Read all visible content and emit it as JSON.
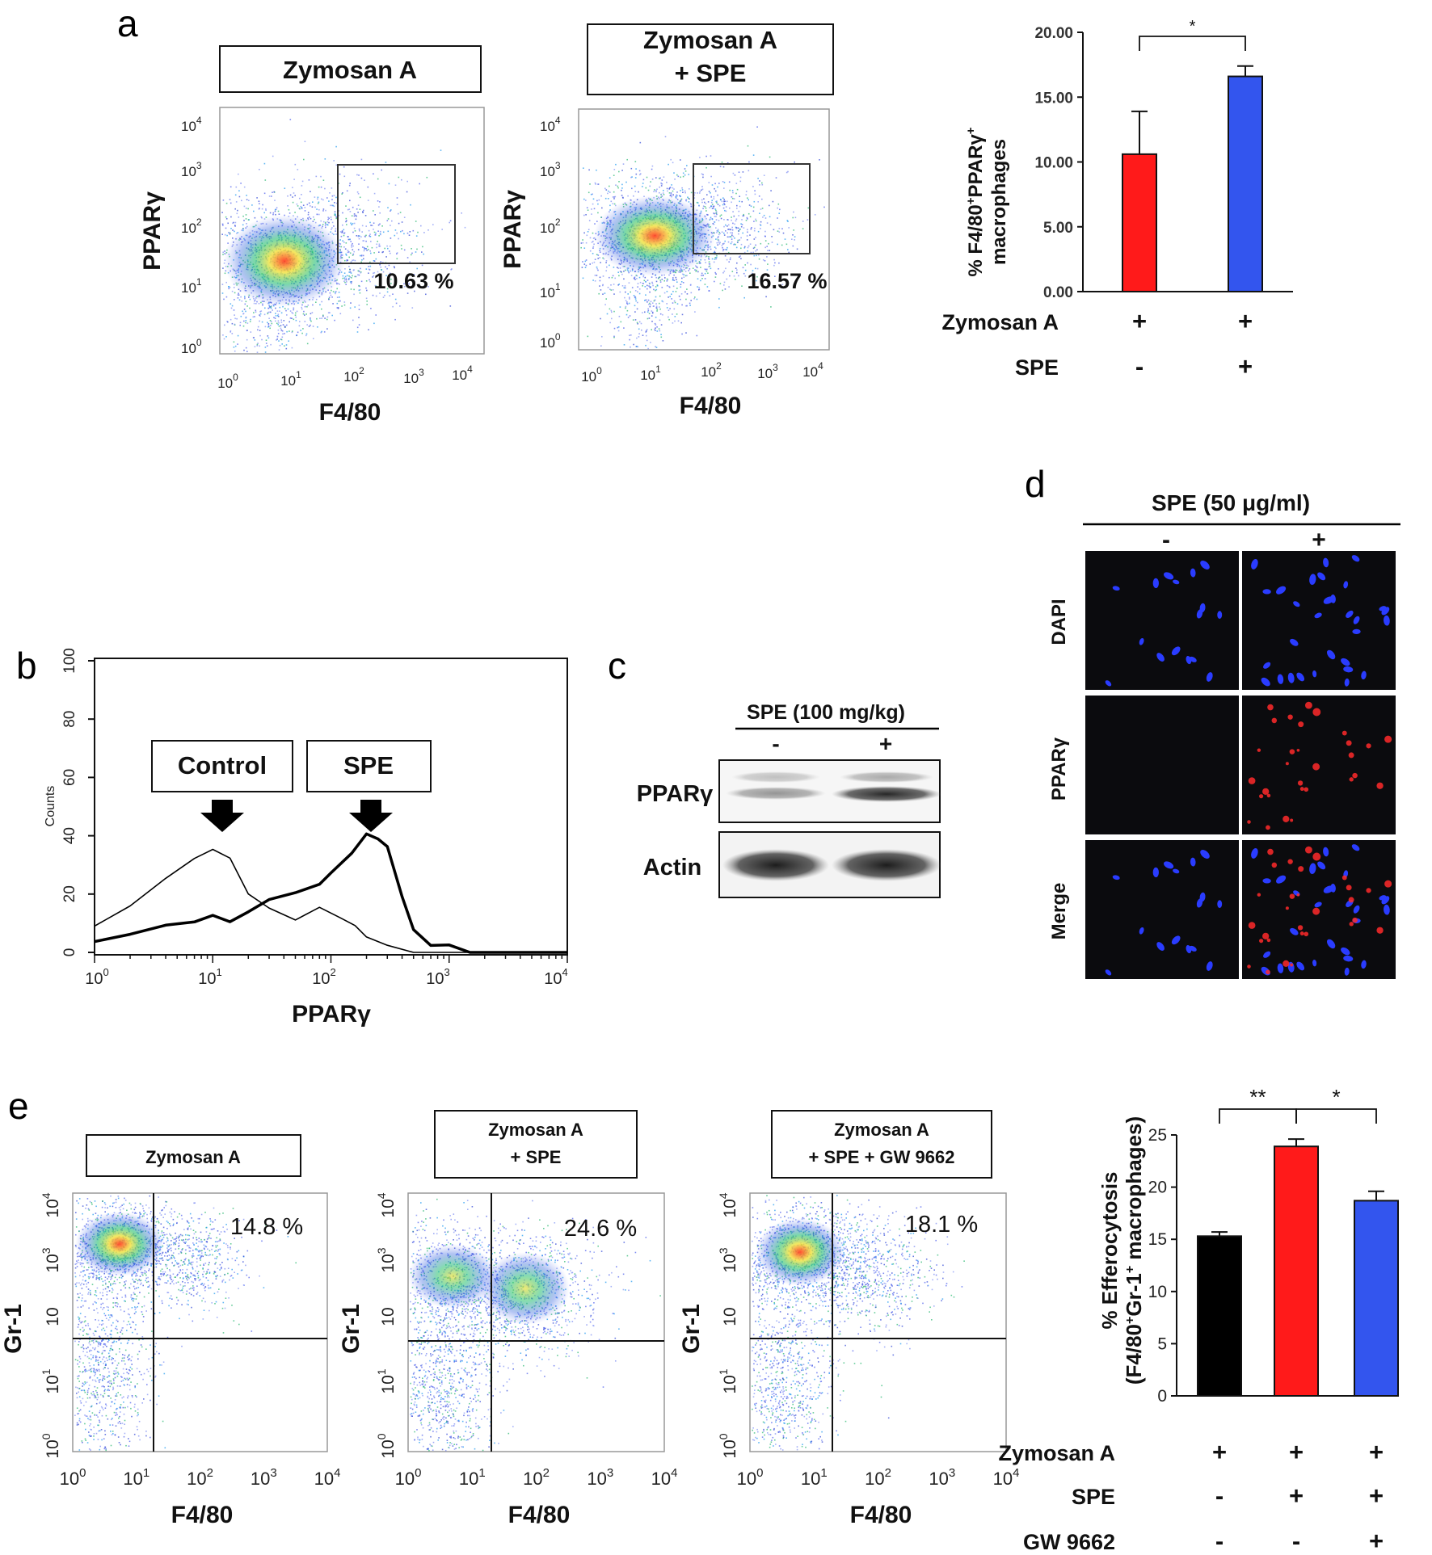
{
  "panel_a": {
    "letter": "a",
    "plots": [
      {
        "title_lines": [
          "Zymosan A"
        ],
        "percent": "10.63 %",
        "gate_x_min": 40,
        "gate_y_min": 30
      },
      {
        "title_lines": [
          "Zymosan A",
          "+ SPE"
        ],
        "percent": "16.57 %",
        "gate_x_min": 40,
        "gate_y_min": 20
      }
    ],
    "ylabel": "PPARγ",
    "xlabel": "F4/80",
    "ticks": [
      {
        "base": "10",
        "exp": "0"
      },
      {
        "base": "10",
        "exp": "1"
      },
      {
        "base": "10",
        "exp": "2"
      },
      {
        "base": "10",
        "exp": "3"
      },
      {
        "base": "10",
        "exp": "4"
      }
    ]
  },
  "chart_data": [
    {
      "type": "bar",
      "panel": "a",
      "categories": [
        "Zymosan A",
        "Zymosan A + SPE"
      ],
      "values": [
        10.6,
        16.6
      ],
      "errors": [
        3.3,
        0.8
      ],
      "colors": [
        "#ff1a1a",
        "#3355ee"
      ],
      "ylabel_line1": "% F4/80",
      "ylabel_sup1": "+",
      "ylabel_mid": "PPARγ",
      "ylabel_sup2": "+",
      "ylabel_line2": "macrophages",
      "ylim": [
        0,
        20
      ],
      "yticks": [
        "0.00",
        "5.00",
        "10.00",
        "15.00",
        "20.00"
      ],
      "significance": [
        {
          "from": 0,
          "to": 1,
          "label": "*"
        }
      ],
      "conditions": [
        {
          "name": "Zymosan A",
          "marks": [
            "+",
            "+"
          ]
        },
        {
          "name": "SPE",
          "marks": [
            "-",
            "+"
          ]
        }
      ]
    },
    {
      "type": "line",
      "panel": "b",
      "xlabel": "PPARγ",
      "ylabel": "Counts",
      "x_scale": "log",
      "xlim": [
        1,
        10000
      ],
      "ylim": [
        0,
        100
      ],
      "yticks": [
        "0",
        "20",
        "40",
        "60",
        "80",
        "100"
      ],
      "series": [
        {
          "name": "Control",
          "width": 1.6,
          "x": [
            1,
            2,
            4,
            7,
            10,
            14,
            20,
            30,
            50,
            80,
            120,
            160,
            200,
            300,
            500,
            1000,
            10000
          ],
          "y": [
            8,
            15,
            25,
            33,
            37,
            32,
            21,
            14,
            10,
            14,
            12,
            9,
            4,
            2,
            1,
            0,
            0
          ]
        },
        {
          "name": "SPE",
          "width": 3.5,
          "x": [
            1,
            2,
            4,
            7,
            10,
            14,
            20,
            30,
            50,
            80,
            100,
            150,
            200,
            250,
            300,
            400,
            500,
            700,
            1000,
            1500,
            3000,
            10000
          ],
          "y": [
            3,
            5,
            8,
            10,
            11,
            12,
            15,
            17,
            19,
            24,
            28,
            36,
            40,
            40,
            35,
            18,
            8,
            3,
            2,
            1,
            0,
            0
          ]
        }
      ],
      "annotations": [
        "Control",
        "SPE"
      ]
    },
    {
      "type": "bar",
      "panel": "e",
      "categories": [
        "Zymosan A",
        "Zymosan A + SPE",
        "Zymosan A + SPE + GW 9662"
      ],
      "values": [
        15.3,
        23.9,
        18.7
      ],
      "errors": [
        0.4,
        0.7,
        0.9
      ],
      "colors": [
        "#000000",
        "#ff1a1a",
        "#3355ee"
      ],
      "ylabel_line1": "% Efferocytosis",
      "ylabel_line2_a": "(F4/80",
      "ylabel_sup1": "+",
      "ylabel_line2_b": "Gr-1",
      "ylabel_sup2": "+",
      "ylabel_line2_c": " macrophages)",
      "ylim": [
        0,
        25
      ],
      "yticks": [
        "0",
        "5",
        "10",
        "15",
        "20",
        "25"
      ],
      "significance": [
        {
          "from": 0,
          "to": 1,
          "label": "**"
        },
        {
          "from": 1,
          "to": 2,
          "label": "*"
        }
      ],
      "conditions": [
        {
          "name": "Zymosan A",
          "marks": [
            "+",
            "+",
            "+"
          ]
        },
        {
          "name": "SPE",
          "marks": [
            "-",
            "+",
            "+"
          ]
        },
        {
          "name": "GW 9662",
          "marks": [
            "-",
            "-",
            "+"
          ]
        }
      ]
    }
  ],
  "panel_b": {
    "letter": "b",
    "ticks": [
      {
        "base": "10",
        "exp": "0"
      },
      {
        "base": "10",
        "exp": "1"
      },
      {
        "base": "10",
        "exp": "2"
      },
      {
        "base": "10",
        "exp": "3"
      },
      {
        "base": "10",
        "exp": "4"
      }
    ]
  },
  "panel_c": {
    "letter": "c",
    "header": "SPE (100 mg/kg)",
    "minus": "-",
    "plus": "+",
    "rows": [
      "PPARγ",
      "Actin"
    ]
  },
  "panel_d": {
    "letter": "d",
    "header": "SPE (50 μg/ml)",
    "minus": "-",
    "plus": "+",
    "rows": [
      "DAPI",
      "PPARγ",
      "Merge"
    ]
  },
  "panel_e": {
    "letter": "e",
    "plots": [
      {
        "title_lines": [
          "Zymosan  A"
        ],
        "percent": "14.8 %"
      },
      {
        "title_lines": [
          "Zymosan  A",
          "+ SPE"
        ],
        "percent": "24.6 %"
      },
      {
        "title_lines": [
          "Zymosan  A",
          "+ SPE + GW 9662"
        ],
        "percent": "18.1 %"
      }
    ],
    "ylabel": "Gr-1",
    "xlabel": "F4/80",
    "xticks": [
      {
        "base": "10",
        "exp": "0"
      },
      {
        "base": "10",
        "exp": "1"
      },
      {
        "base": "10",
        "exp": "2"
      },
      {
        "base": "10",
        "exp": "3"
      },
      {
        "base": "10",
        "exp": "4"
      }
    ],
    "yticks": [
      {
        "base": "10",
        "exp": "0"
      },
      {
        "base": "10",
        "exp": "1"
      },
      {
        "base": "10",
        "exp": ""
      },
      {
        "base": "10",
        "exp": "3"
      },
      {
        "base": "10",
        "exp": "4"
      }
    ]
  }
}
